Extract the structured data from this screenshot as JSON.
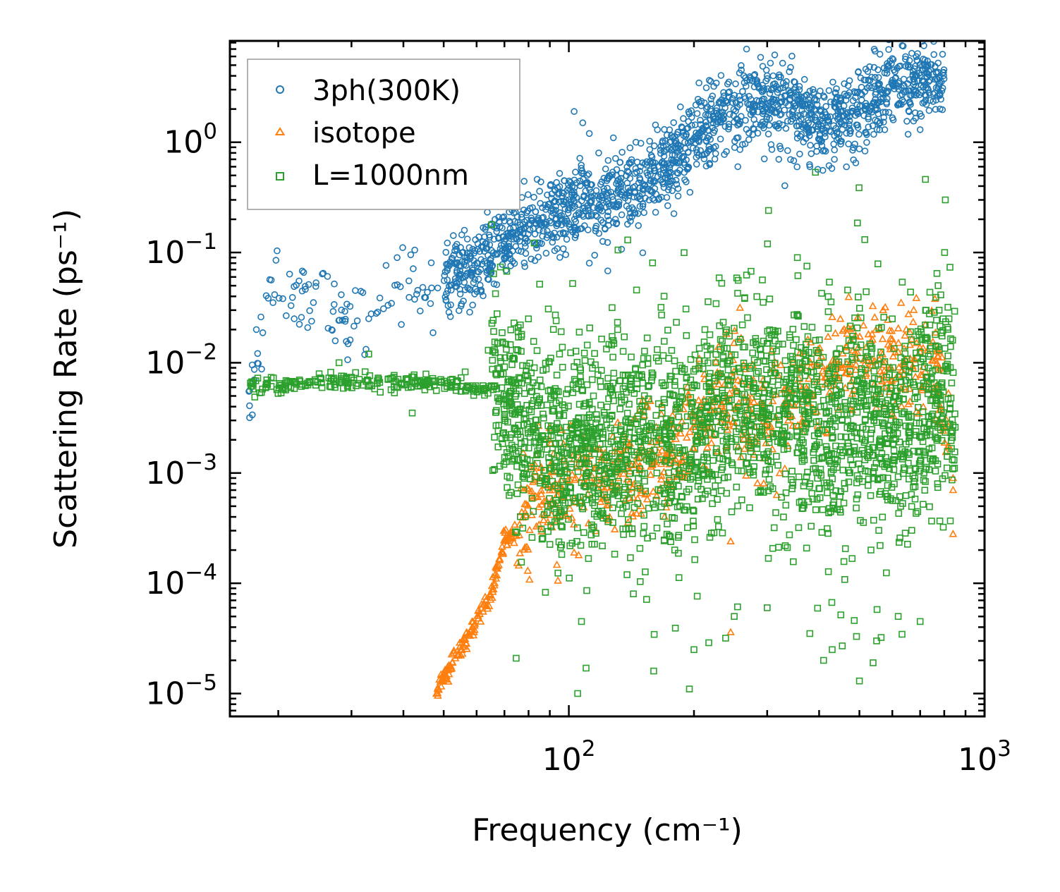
{
  "chart_data": {
    "type": "scatter",
    "title": "",
    "xlabel": "Frequency (cm⁻¹)",
    "ylabel": "Scattering Rate (ps⁻¹)",
    "xscale": "log",
    "yscale": "log",
    "xlim": [
      15.3,
      1000
    ],
    "ylim": [
      6.2e-06,
      8.3
    ],
    "x_ticks": [
      {
        "value": 100,
        "base": "10",
        "exp": "2"
      },
      {
        "value": 1000,
        "base": "10",
        "exp": "3"
      }
    ],
    "y_ticks": [
      {
        "value": 1,
        "base": "10",
        "exp": "0"
      },
      {
        "value": 0.1,
        "base": "10",
        "exp": "−1"
      },
      {
        "value": 0.01,
        "base": "10",
        "exp": "−2"
      },
      {
        "value": 0.001,
        "base": "10",
        "exp": "−3"
      },
      {
        "value": 0.0001,
        "base": "10",
        "exp": "−4"
      },
      {
        "value": 1e-05,
        "base": "10",
        "exp": "−5"
      }
    ],
    "legend_position": "top-left",
    "series": [
      {
        "name": "3ph(300K)",
        "marker": "circle",
        "color": "#1f77b4",
        "trend": [
          [
            17,
            0.006
          ],
          [
            19,
            0.04
          ],
          [
            22,
            0.04
          ],
          [
            25,
            0.045
          ],
          [
            30,
            0.02
          ],
          [
            35,
            0.03
          ],
          [
            40,
            0.05
          ],
          [
            45,
            0.05
          ],
          [
            50,
            0.06
          ],
          [
            60,
            0.08
          ],
          [
            70,
            0.12
          ],
          [
            80,
            0.16
          ],
          [
            90,
            0.2
          ],
          [
            100,
            0.25
          ],
          [
            110,
            0.3
          ],
          [
            120,
            0.22
          ],
          [
            130,
            0.3
          ],
          [
            150,
            0.4
          ],
          [
            170,
            0.6
          ],
          [
            190,
            0.9
          ],
          [
            200,
            1.1
          ],
          [
            220,
            1.6
          ],
          [
            250,
            2.2
          ],
          [
            300,
            2.4
          ],
          [
            350,
            2.0
          ],
          [
            400,
            1.5
          ],
          [
            450,
            1.6
          ],
          [
            500,
            2.2
          ],
          [
            600,
            3.0
          ],
          [
            700,
            3.6
          ],
          [
            800,
            3.5
          ]
        ],
        "spread": 0.18,
        "extra_points": [
          [
            17,
            0.0055
          ],
          [
            17.5,
            0.007
          ],
          [
            103,
            1.9
          ],
          [
            108,
            1.5
          ],
          [
            112,
            1.2
          ],
          [
            118,
            0.8
          ],
          [
            125,
            0.5
          ],
          [
            112,
            0.08
          ],
          [
            145,
            1.0
          ],
          [
            160,
            0.45
          ],
          [
            255,
            0.6
          ],
          [
            320,
            0.7
          ],
          [
            380,
            0.6
          ],
          [
            490,
            0.65
          ],
          [
            700,
            1.3
          ]
        ]
      },
      {
        "name": "isotope",
        "marker": "triangle",
        "color": "#ff7f0e",
        "trend": [
          [
            48,
            1.05e-05
          ],
          [
            52,
            1.8e-05
          ],
          [
            56,
            2.8e-05
          ],
          [
            60,
            4.5e-05
          ],
          [
            65,
            8e-05
          ],
          [
            68,
            0.00015
          ],
          [
            70,
            0.00025
          ],
          [
            75,
            0.0003
          ],
          [
            80,
            0.00045
          ],
          [
            90,
            0.0007
          ],
          [
            100,
            0.0008
          ],
          [
            120,
            0.0009
          ],
          [
            150,
            0.0012
          ],
          [
            180,
            0.0015
          ],
          [
            200,
            0.0025
          ],
          [
            230,
            0.005
          ],
          [
            260,
            0.004
          ],
          [
            300,
            0.003
          ],
          [
            350,
            0.005
          ],
          [
            400,
            0.007
          ],
          [
            450,
            0.01
          ],
          [
            500,
            0.012
          ],
          [
            550,
            0.011
          ],
          [
            600,
            0.012
          ],
          [
            650,
            0.01
          ],
          [
            700,
            0.008
          ],
          [
            760,
            0.012
          ],
          [
            820,
            0.0015
          ]
        ],
        "spread": 0.25,
        "extra_points": [
          [
            103,
            0.00019
          ],
          [
            170,
            0.0004
          ],
          [
            245,
            0.00024
          ],
          [
            245,
            3.6e-05
          ],
          [
            450,
            0.025
          ],
          [
            570,
            0.03
          ],
          [
            630,
            0.035
          ],
          [
            760,
            0.038
          ],
          [
            840,
            0.00028
          ],
          [
            840,
            0.0007
          ],
          [
            840,
            0.0009
          ]
        ]
      },
      {
        "name": "L=1000nm",
        "marker": "square",
        "color": "#2ca02c",
        "trend": [
          [
            17,
            0.0068
          ],
          [
            20,
            0.0062
          ],
          [
            25,
            0.0067
          ],
          [
            30,
            0.0068
          ],
          [
            35,
            0.0065
          ],
          [
            40,
            0.0066
          ],
          [
            45,
            0.0066
          ],
          [
            50,
            0.0065
          ],
          [
            55,
            0.0062
          ],
          [
            60,
            0.006
          ],
          [
            65,
            0.0055
          ],
          [
            70,
            0.004
          ],
          [
            80,
            0.0025
          ],
          [
            90,
            0.0018
          ],
          [
            100,
            0.0015
          ],
          [
            120,
            0.0018
          ],
          [
            150,
            0.0022
          ],
          [
            180,
            0.0018
          ],
          [
            200,
            0.002
          ],
          [
            230,
            0.004
          ],
          [
            260,
            0.005
          ],
          [
            300,
            0.0035
          ],
          [
            350,
            0.004
          ],
          [
            400,
            0.003
          ],
          [
            450,
            0.0025
          ],
          [
            500,
            0.003
          ],
          [
            600,
            0.0025
          ],
          [
            700,
            0.003
          ],
          [
            800,
            0.006
          ],
          [
            850,
            0.004
          ]
        ],
        "spread": 0.45,
        "extra_points": [
          [
            105,
            1e-05
          ],
          [
            110,
            1.7e-05
          ],
          [
            160,
            1.6e-05
          ],
          [
            195,
            1.1e-05
          ],
          [
            200,
            2.5e-05
          ],
          [
            250,
            5e-05
          ],
          [
            300,
            6e-05
          ],
          [
            380,
            3.5e-05
          ],
          [
            410,
            2e-05
          ],
          [
            430,
            2.5e-05
          ],
          [
            500,
            1.3e-05
          ],
          [
            550,
            3e-05
          ],
          [
            620,
            5e-05
          ],
          [
            700,
            4.5e-05
          ],
          [
            42,
            0.0035
          ],
          [
            33,
            0.012
          ],
          [
            28,
            0.01
          ],
          [
            64,
            0.013
          ],
          [
            95,
            0.012
          ],
          [
            300,
            0.015
          ],
          [
            600,
            0.025
          ],
          [
            720,
            0.022
          ],
          [
            840,
            0.0027
          ]
        ]
      }
    ]
  }
}
